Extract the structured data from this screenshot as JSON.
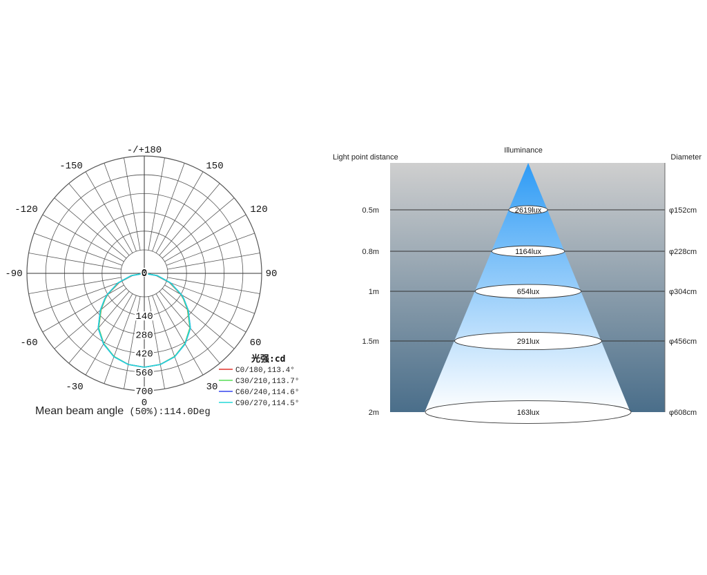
{
  "polar": {
    "angle_labels": [
      "-/+180",
      "-150",
      "150",
      "-120",
      "120",
      "-90",
      "90",
      "-60",
      "60",
      "-30",
      "30",
      "0",
      "0"
    ],
    "unit_label": "光强:cd",
    "caption_main": "Mean beam angle",
    "caption_suffix": "(50%):114.0Deg",
    "legend": [
      {
        "label": "C0/180,113.4°",
        "color": "#e0302a"
      },
      {
        "label": "C30/210,113.7°",
        "color": "#55dd55"
      },
      {
        "label": "C60/240,114.6°",
        "color": "#3344ee"
      },
      {
        "label": "C90/270,114.5°",
        "color": "#22d8d8"
      }
    ]
  },
  "cone": {
    "left_header": "Light point distance",
    "center_header": "Illuminance",
    "right_header": "Diameter",
    "rows": [
      {
        "distance": "0.5m",
        "illuminance": "2619lux",
        "diameter": "φ152cm"
      },
      {
        "distance": "0.8m",
        "illuminance": "1164lux",
        "diameter": "φ228cm"
      },
      {
        "distance": "1m",
        "illuminance": "654lux",
        "diameter": "φ304cm"
      },
      {
        "distance": "1.5m",
        "illuminance": "291lux",
        "diameter": "φ456cm"
      },
      {
        "distance": "2m",
        "illuminance": "163lux",
        "diameter": "φ608cm"
      }
    ],
    "colors": {
      "beam_top": "#2e9bf5",
      "beam_bottom": "#ffffff",
      "bg_top": "#cfcfcf",
      "bg_bottom": "#4a6e8a"
    }
  },
  "chart_data": [
    {
      "type": "polar",
      "title": "",
      "angles_deg": [
        0,
        30,
        60,
        90,
        120,
        150,
        180,
        -150,
        -120,
        -90,
        -60,
        -30
      ],
      "radial_ticks": [
        0,
        140,
        280,
        420,
        560,
        700
      ],
      "radial_range": [
        0,
        700
      ],
      "unit": "光强:cd",
      "series": [
        {
          "name": "C0/180,113.4°",
          "beam_angle": 113.4,
          "theta_deg": [
            0,
            10,
            20,
            30,
            40,
            50,
            56.7,
            60,
            70,
            80,
            90
          ],
          "intensity": [
            700,
            690,
            660,
            605,
            530,
            420,
            350,
            315,
            200,
            90,
            0
          ]
        },
        {
          "name": "C30/210,113.7°",
          "beam_angle": 113.7,
          "theta_deg": [
            0,
            10,
            20,
            30,
            40,
            50,
            56.85,
            60,
            70,
            80,
            90
          ],
          "intensity": [
            700,
            690,
            660,
            605,
            530,
            422,
            350,
            318,
            205,
            95,
            0
          ]
        },
        {
          "name": "C60/240,114.6°",
          "beam_angle": 114.6,
          "theta_deg": [
            0,
            10,
            20,
            30,
            40,
            50,
            57.3,
            60,
            70,
            80,
            90
          ],
          "intensity": [
            700,
            690,
            662,
            608,
            535,
            428,
            350,
            322,
            210,
            100,
            0
          ]
        },
        {
          "name": "C90/270,114.5°",
          "beam_angle": 114.5,
          "theta_deg": [
            0,
            10,
            20,
            30,
            40,
            50,
            57.25,
            60,
            70,
            80,
            90
          ],
          "intensity": [
            700,
            690,
            662,
            607,
            534,
            427,
            350,
            321,
            208,
            98,
            0
          ]
        }
      ],
      "mean_beam_angle": 114.0
    },
    {
      "type": "table",
      "columns": [
        "Light point distance",
        "Illuminance",
        "Diameter"
      ],
      "rows": [
        [
          "0.5m",
          "2619lux",
          "φ152cm"
        ],
        [
          "0.8m",
          "1164lux",
          "φ228cm"
        ],
        [
          "1m",
          "654lux",
          "φ304cm"
        ],
        [
          "1.5m",
          "291lux",
          "φ456cm"
        ],
        [
          "2m",
          "163lux",
          "φ608cm"
        ]
      ]
    }
  ]
}
